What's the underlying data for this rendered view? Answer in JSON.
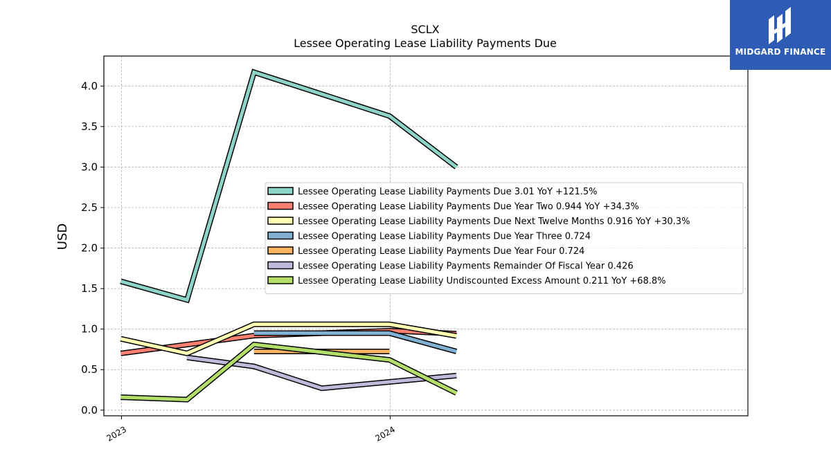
{
  "logo": {
    "text": "MIDGARD FINANCE",
    "icon": "midgard-logo-icon",
    "color": "#2e5bb3"
  },
  "chart_data": {
    "type": "line",
    "title": "SCLX",
    "subtitle": "Lessee Operating Lease Liability Payments Due",
    "xlabel": "",
    "ylabel": "USD",
    "xlim": [
      "2022-12-08",
      "2025-05-01"
    ],
    "ylim": [
      -0.07,
      4.37
    ],
    "y_ticks": [
      0.0,
      0.5,
      1.0,
      1.5,
      2.0,
      2.5,
      3.0,
      3.5,
      4.0
    ],
    "y_tick_labels": [
      "0.0",
      "0.5",
      "1.0",
      "1.5",
      "2.0",
      "2.5",
      "3.0",
      "3.5",
      "4.0"
    ],
    "x_ticks": [
      "2023-01-01",
      "2024-01-01"
    ],
    "x_tick_labels": [
      "2023",
      "2024"
    ],
    "grid": true,
    "legend_position": "center-right",
    "series": [
      {
        "name": "Lessee Operating Lease Liability Payments Due",
        "legend_label": "Lessee Operating Lease Liability Payments Due  3.01 YoY +121.5%",
        "color": "#8dd3c7",
        "x": [
          "2022-12-31",
          "2023-03-31",
          "2023-06-30",
          "2023-12-31",
          "2024-03-31"
        ],
        "values": [
          1.59,
          1.36,
          4.17,
          3.63,
          3.0
        ]
      },
      {
        "name": "Lessee Operating Lease Liability Payments Due Year Two",
        "legend_label": "Lessee Operating Lease Liability Payments Due Year Two  0.944 YoY +34.3%",
        "color": "#fb8072",
        "x": [
          "2022-12-31",
          "2023-06-30",
          "2023-12-31",
          "2024-03-31"
        ],
        "values": [
          0.7,
          0.92,
          0.98,
          0.944
        ]
      },
      {
        "name": "Lessee Operating Lease Liability Payments Due Next Twelve Months",
        "legend_label": "Lessee Operating Lease Liability Payments Due Next Twelve Months  0.916 YoY +30.3%",
        "color": "#ffffb3",
        "x": [
          "2022-12-31",
          "2023-03-31",
          "2023-06-30",
          "2023-12-31",
          "2024-03-31"
        ],
        "values": [
          0.88,
          0.7,
          1.06,
          1.06,
          0.916
        ]
      },
      {
        "name": "Lessee Operating Lease Liability Payments Due Year Three",
        "legend_label": "Lessee Operating Lease Liability Payments Due Year Three  0.724",
        "color": "#80b1d3",
        "x": [
          "2023-06-30",
          "2023-12-31",
          "2024-03-31"
        ],
        "values": [
          0.95,
          0.95,
          0.724
        ]
      },
      {
        "name": "Lessee Operating Lease Liability Payments Due Year Four",
        "legend_label": "Lessee Operating Lease Liability Payments Due Year Four  0.724",
        "color": "#fdb462",
        "x": [
          "2023-06-30",
          "2023-12-31"
        ],
        "values": [
          0.724,
          0.724
        ]
      },
      {
        "name": "Lessee Operating Lease Liability Payments Remainder Of Fiscal Year",
        "legend_label": "Lessee Operating Lease Liability Payments Remainder Of Fiscal Year  0.426",
        "color": "#bebada",
        "x": [
          "2023-03-31",
          "2023-06-30",
          "2023-09-30",
          "2024-03-31"
        ],
        "values": [
          0.65,
          0.54,
          0.27,
          0.426
        ]
      },
      {
        "name": "Lessee Operating Lease Liability Undiscounted Excess Amount",
        "legend_label": "Lessee Operating Lease Liability Undiscounted Excess Amount  0.211 YoY +68.8%",
        "color": "#b3de69",
        "x": [
          "2022-12-31",
          "2023-03-31",
          "2023-06-30",
          "2023-12-31",
          "2024-03-31"
        ],
        "values": [
          0.16,
          0.13,
          0.81,
          0.62,
          0.211
        ]
      }
    ]
  }
}
